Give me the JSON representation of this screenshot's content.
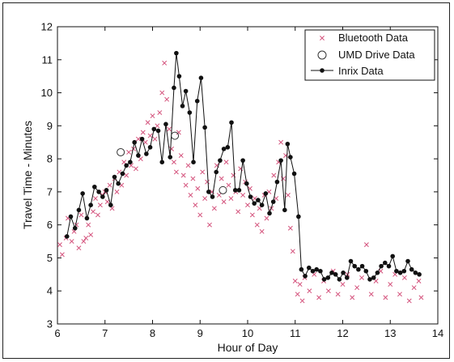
{
  "chart_data": {
    "type": "scatter",
    "title": "",
    "xlabel": "Hour of Day",
    "ylabel": "Travel Time - Minutes",
    "xlim": [
      6,
      14
    ],
    "ylim": [
      3,
      12
    ],
    "xticks": [
      6,
      7,
      8,
      9,
      10,
      11,
      12,
      13,
      14
    ],
    "yticks": [
      3,
      4,
      5,
      6,
      7,
      8,
      9,
      10,
      11,
      12
    ],
    "grid": false,
    "legend_position": "top-right",
    "colors": {
      "bluetooth": "#d4527c",
      "line": "#111111"
    },
    "series": [
      {
        "name": "Bluetooth Data",
        "marker": "x",
        "points": [
          [
            6.05,
            5.4
          ],
          [
            6.1,
            5.1
          ],
          [
            6.18,
            5.6
          ],
          [
            6.22,
            6.2
          ],
          [
            6.3,
            5.5
          ],
          [
            6.35,
            5.8
          ],
          [
            6.4,
            6.0
          ],
          [
            6.45,
            5.3
          ],
          [
            6.5,
            6.3
          ],
          [
            6.55,
            5.5
          ],
          [
            6.6,
            5.6
          ],
          [
            6.65,
            6.0
          ],
          [
            6.7,
            5.7
          ],
          [
            6.75,
            6.4
          ],
          [
            6.8,
            6.8
          ],
          [
            6.85,
            6.3
          ],
          [
            6.9,
            6.6
          ],
          [
            6.95,
            6.9
          ],
          [
            7.0,
            7.0
          ],
          [
            7.05,
            6.7
          ],
          [
            7.1,
            7.2
          ],
          [
            7.15,
            6.5
          ],
          [
            7.2,
            7.4
          ],
          [
            7.25,
            7.0
          ],
          [
            7.3,
            7.6
          ],
          [
            7.35,
            7.2
          ],
          [
            7.4,
            7.9
          ],
          [
            7.45,
            7.5
          ],
          [
            7.5,
            8.2
          ],
          [
            7.55,
            7.8
          ],
          [
            7.6,
            8.3
          ],
          [
            7.65,
            7.7
          ],
          [
            7.7,
            8.6
          ],
          [
            7.75,
            8.0
          ],
          [
            7.8,
            8.8
          ],
          [
            7.85,
            8.5
          ],
          [
            7.9,
            9.1
          ],
          [
            7.95,
            8.7
          ],
          [
            8.0,
            9.3
          ],
          [
            8.05,
            8.6
          ],
          [
            8.1,
            9.0
          ],
          [
            8.15,
            9.4
          ],
          [
            8.2,
            10.0
          ],
          [
            8.25,
            10.9
          ],
          [
            8.3,
            9.8
          ],
          [
            8.35,
            8.9
          ],
          [
            8.4,
            8.3
          ],
          [
            8.45,
            7.9
          ],
          [
            8.5,
            7.6
          ],
          [
            8.55,
            8.8
          ],
          [
            8.6,
            8.1
          ],
          [
            8.65,
            7.5
          ],
          [
            8.7,
            7.2
          ],
          [
            8.75,
            7.8
          ],
          [
            8.8,
            6.9
          ],
          [
            8.85,
            7.4
          ],
          [
            8.9,
            6.6
          ],
          [
            8.95,
            7.1
          ],
          [
            9.0,
            6.3
          ],
          [
            9.05,
            7.6
          ],
          [
            9.1,
            6.8
          ],
          [
            9.15,
            7.3
          ],
          [
            9.2,
            6.0
          ],
          [
            9.25,
            7.0
          ],
          [
            9.3,
            6.5
          ],
          [
            9.35,
            7.8
          ],
          [
            9.4,
            6.9
          ],
          [
            9.45,
            7.4
          ],
          [
            9.5,
            6.7
          ],
          [
            9.55,
            7.9
          ],
          [
            9.6,
            7.2
          ],
          [
            9.65,
            6.8
          ],
          [
            9.7,
            7.5
          ],
          [
            9.75,
            7.0
          ],
          [
            9.8,
            6.4
          ],
          [
            9.85,
            7.7
          ],
          [
            9.9,
            6.9
          ],
          [
            9.95,
            7.3
          ],
          [
            10.0,
            6.6
          ],
          [
            10.05,
            7.1
          ],
          [
            10.1,
            6.3
          ],
          [
            10.15,
            6.8
          ],
          [
            10.2,
            6.0
          ],
          [
            10.25,
            6.5
          ],
          [
            10.3,
            5.8
          ],
          [
            10.35,
            6.9
          ],
          [
            10.4,
            6.2
          ],
          [
            10.45,
            7.0
          ],
          [
            10.5,
            6.5
          ],
          [
            10.55,
            7.5
          ],
          [
            10.6,
            6.8
          ],
          [
            10.65,
            7.9
          ],
          [
            10.7,
            8.5
          ],
          [
            10.75,
            7.4
          ],
          [
            10.8,
            8.1
          ],
          [
            10.85,
            6.9
          ],
          [
            10.9,
            5.9
          ],
          [
            10.95,
            5.2
          ],
          [
            11.0,
            4.3
          ],
          [
            11.05,
            3.9
          ],
          [
            11.1,
            4.2
          ],
          [
            11.15,
            3.7
          ],
          [
            11.2,
            4.4
          ],
          [
            11.3,
            4.0
          ],
          [
            11.4,
            4.5
          ],
          [
            11.5,
            3.8
          ],
          [
            11.6,
            4.3
          ],
          [
            11.7,
            4.0
          ],
          [
            11.8,
            4.6
          ],
          [
            11.9,
            3.9
          ],
          [
            12.0,
            4.2
          ],
          [
            12.1,
            4.5
          ],
          [
            12.2,
            3.8
          ],
          [
            12.3,
            4.1
          ],
          [
            12.4,
            4.4
          ],
          [
            12.5,
            5.4
          ],
          [
            12.6,
            3.9
          ],
          [
            12.7,
            4.3
          ],
          [
            12.8,
            4.6
          ],
          [
            12.9,
            3.8
          ],
          [
            13.0,
            4.2
          ],
          [
            13.1,
            4.5
          ],
          [
            13.2,
            3.9
          ],
          [
            13.3,
            4.4
          ],
          [
            13.4,
            3.7
          ],
          [
            13.5,
            4.1
          ],
          [
            13.6,
            4.3
          ],
          [
            13.65,
            3.8
          ]
        ]
      },
      {
        "name": "UMD Drive Data",
        "marker": "o",
        "points": [
          [
            7.33,
            8.2
          ],
          [
            8.47,
            8.7
          ],
          [
            9.48,
            7.05
          ]
        ]
      },
      {
        "name": "Inrix Data",
        "marker": "line-dot",
        "points": [
          [
            6.2,
            5.65
          ],
          [
            6.28,
            6.25
          ],
          [
            6.37,
            5.9
          ],
          [
            6.45,
            6.45
          ],
          [
            6.53,
            6.95
          ],
          [
            6.62,
            6.2
          ],
          [
            6.7,
            6.6
          ],
          [
            6.78,
            7.15
          ],
          [
            6.87,
            7.0
          ],
          [
            6.95,
            6.85
          ],
          [
            7.03,
            7.05
          ],
          [
            7.12,
            6.6
          ],
          [
            7.2,
            7.45
          ],
          [
            7.28,
            7.25
          ],
          [
            7.37,
            7.55
          ],
          [
            7.45,
            7.8
          ],
          [
            7.53,
            7.9
          ],
          [
            7.62,
            8.5
          ],
          [
            7.7,
            8.1
          ],
          [
            7.78,
            8.6
          ],
          [
            7.87,
            8.15
          ],
          [
            7.95,
            8.35
          ],
          [
            8.03,
            8.9
          ],
          [
            8.12,
            8.85
          ],
          [
            8.2,
            7.9
          ],
          [
            8.28,
            9.05
          ],
          [
            8.37,
            8.05
          ],
          [
            8.45,
            10.15
          ],
          [
            8.5,
            11.2
          ],
          [
            8.56,
            10.5
          ],
          [
            8.63,
            9.6
          ],
          [
            8.7,
            10.05
          ],
          [
            8.78,
            9.4
          ],
          [
            8.86,
            7.9
          ],
          [
            8.94,
            9.75
          ],
          [
            9.02,
            10.45
          ],
          [
            9.1,
            8.95
          ],
          [
            9.18,
            7.0
          ],
          [
            9.26,
            6.85
          ],
          [
            9.34,
            7.6
          ],
          [
            9.42,
            7.95
          ],
          [
            9.5,
            8.3
          ],
          [
            9.58,
            8.35
          ],
          [
            9.66,
            9.1
          ],
          [
            9.74,
            7.05
          ],
          [
            9.82,
            7.05
          ],
          [
            9.9,
            7.95
          ],
          [
            9.98,
            7.25
          ],
          [
            10.06,
            6.85
          ],
          [
            10.14,
            6.65
          ],
          [
            10.22,
            6.75
          ],
          [
            10.3,
            6.6
          ],
          [
            10.38,
            6.95
          ],
          [
            10.46,
            6.35
          ],
          [
            10.54,
            6.7
          ],
          [
            10.62,
            7.3
          ],
          [
            10.7,
            7.95
          ],
          [
            10.78,
            6.45
          ],
          [
            10.84,
            8.45
          ],
          [
            10.9,
            8.05
          ],
          [
            10.98,
            7.55
          ],
          [
            11.07,
            6.25
          ],
          [
            11.13,
            4.65
          ],
          [
            11.21,
            4.45
          ],
          [
            11.29,
            4.7
          ],
          [
            11.37,
            4.6
          ],
          [
            11.45,
            4.65
          ],
          [
            11.53,
            4.6
          ],
          [
            11.61,
            4.35
          ],
          [
            11.69,
            4.4
          ],
          [
            11.77,
            4.55
          ],
          [
            11.85,
            4.5
          ],
          [
            11.93,
            4.35
          ],
          [
            12.01,
            4.55
          ],
          [
            12.09,
            4.4
          ],
          [
            12.17,
            4.9
          ],
          [
            12.25,
            4.75
          ],
          [
            12.33,
            4.65
          ],
          [
            12.41,
            4.75
          ],
          [
            12.49,
            4.6
          ],
          [
            12.57,
            4.35
          ],
          [
            12.65,
            4.4
          ],
          [
            12.73,
            4.55
          ],
          [
            12.81,
            4.75
          ],
          [
            12.89,
            4.85
          ],
          [
            12.97,
            4.75
          ],
          [
            13.05,
            5.05
          ],
          [
            13.13,
            4.6
          ],
          [
            13.21,
            4.55
          ],
          [
            13.29,
            4.6
          ],
          [
            13.37,
            4.9
          ],
          [
            13.45,
            4.65
          ],
          [
            13.53,
            4.55
          ],
          [
            13.61,
            4.5
          ]
        ]
      }
    ]
  }
}
